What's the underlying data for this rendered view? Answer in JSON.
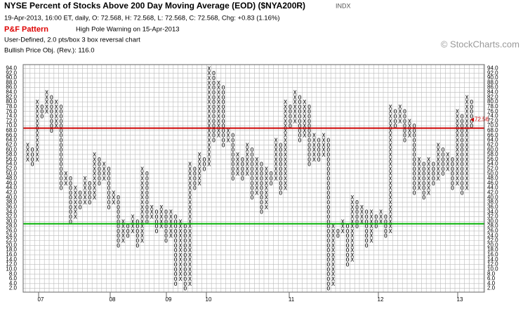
{
  "chart_data": {
    "type": "point-and-figure",
    "title": "NYSE Percent of Stocks Above 200 Day Moving Average (EOD) ($NYA200R)",
    "exchange": "INDX",
    "quote_line": "19-Apr-2013, 16:00 ET, daily, O: 72.568, H: 72.568, L: 72.568, C: 72.568, Chg: +0.83 (1.16%)",
    "pattern_label": "P&F Pattern",
    "pattern_text": "High Pole Warning on 15-Apr-2013",
    "settings_text": "User-Defined, 2.0 pts/box 3 box reversal chart",
    "objective_text": "Bullish Price Obj. (Rev.): 116.0",
    "watermark": "© StockCharts.com",
    "box_size": 2,
    "ylim": [
      1,
      95
    ],
    "yticks": [
      {
        "value": 2,
        "label": "2.0"
      },
      {
        "value": 4,
        "label": "4.0"
      },
      {
        "value": 6,
        "label": "6.0"
      },
      {
        "value": 8,
        "label": "8.0"
      },
      {
        "value": 10,
        "label": "10.0"
      },
      {
        "value": 12,
        "label": "12.0"
      },
      {
        "value": 14,
        "label": "14.0"
      },
      {
        "value": 16,
        "label": "16.0"
      },
      {
        "value": 18,
        "label": "18.0"
      },
      {
        "value": 20,
        "label": "20.0"
      },
      {
        "value": 22,
        "label": "22.0"
      },
      {
        "value": 24,
        "label": "24.0"
      },
      {
        "value": 26,
        "label": "26.0"
      },
      {
        "value": 28,
        "label": "28.0"
      },
      {
        "value": 30,
        "label": "30.0"
      },
      {
        "value": 32,
        "label": "32.0"
      },
      {
        "value": 34,
        "label": "34.0"
      },
      {
        "value": 36,
        "label": "36.0"
      },
      {
        "value": 38,
        "label": "38.0"
      },
      {
        "value": 40,
        "label": "40.0"
      },
      {
        "value": 42,
        "label": "42.0"
      },
      {
        "value": 44,
        "label": "44.0"
      },
      {
        "value": 46,
        "label": "46.0"
      },
      {
        "value": 48,
        "label": "48.0"
      },
      {
        "value": 50,
        "label": "50.0"
      },
      {
        "value": 52,
        "label": "52.0"
      },
      {
        "value": 54,
        "label": "54.0"
      },
      {
        "value": 56,
        "label": "56.0"
      },
      {
        "value": 58,
        "label": "58.0"
      },
      {
        "value": 60,
        "label": "60.0"
      },
      {
        "value": 62,
        "label": "62.0"
      },
      {
        "value": 64,
        "label": "64.0"
      },
      {
        "value": 66,
        "label": "66.0"
      },
      {
        "value": 68,
        "label": "68.0"
      },
      {
        "value": 70,
        "label": "70.0"
      },
      {
        "value": 72,
        "label": "72.0"
      },
      {
        "value": 74,
        "label": "74.0"
      },
      {
        "value": 76,
        "label": "76.0"
      },
      {
        "value": 78,
        "label": "78.0"
      },
      {
        "value": 80,
        "label": "80.0"
      },
      {
        "value": 82,
        "label": "82.0"
      },
      {
        "value": 84,
        "label": "84.0"
      },
      {
        "value": 86,
        "label": "86.0"
      },
      {
        "value": 88,
        "label": "88.0"
      },
      {
        "value": 90,
        "label": "90.0"
      },
      {
        "value": 92,
        "label": "92.0"
      },
      {
        "value": 94,
        "label": "94.0"
      }
    ],
    "reference_lines": [
      {
        "value": 69,
        "color": "#cc0000"
      },
      {
        "value": 29,
        "color": "#00b000"
      }
    ],
    "last_value": 72.56,
    "last_label": "72.56",
    "last_color": "#cc0000",
    "year_labels": [
      "07",
      "08",
      "09",
      "10",
      "11",
      "12",
      "13"
    ],
    "columns": [
      {
        "type": "X",
        "low": 56,
        "high": 62
      },
      {
        "type": "O",
        "low": 54,
        "high": 60
      },
      {
        "type": "X",
        "low": 56,
        "high": 80
      },
      {
        "type": "O",
        "low": 74,
        "high": 78
      },
      {
        "type": "X",
        "low": 76,
        "high": 84
      },
      {
        "type": "O",
        "low": 68,
        "high": 82
      },
      {
        "type": "X",
        "low": 70,
        "high": 80
      },
      {
        "type": "O",
        "low": 44,
        "high": 78
      },
      {
        "type": "X",
        "low": 46,
        "high": 50
      },
      {
        "type": "O",
        "low": 30,
        "high": 48
      },
      {
        "type": "X",
        "low": 32,
        "high": 44
      },
      {
        "type": "O",
        "low": 36,
        "high": 42
      },
      {
        "type": "X",
        "low": 38,
        "high": 48
      },
      {
        "type": "O",
        "low": 38,
        "high": 46
      },
      {
        "type": "X",
        "low": 40,
        "high": 58
      },
      {
        "type": "O",
        "low": 46,
        "high": 56
      },
      {
        "type": "X",
        "low": 48,
        "high": 54
      },
      {
        "type": "O",
        "low": 36,
        "high": 52
      },
      {
        "type": "X",
        "low": 38,
        "high": 42
      },
      {
        "type": "O",
        "low": 20,
        "high": 40
      },
      {
        "type": "X",
        "low": 22,
        "high": 30
      },
      {
        "type": "O",
        "low": 24,
        "high": 28
      },
      {
        "type": "X",
        "low": 26,
        "high": 32
      },
      {
        "type": "O",
        "low": 20,
        "high": 30
      },
      {
        "type": "X",
        "low": 22,
        "high": 52
      },
      {
        "type": "O",
        "low": 30,
        "high": 50
      },
      {
        "type": "X",
        "low": 32,
        "high": 36
      },
      {
        "type": "O",
        "low": 26,
        "high": 34
      },
      {
        "type": "X",
        "low": 28,
        "high": 36
      },
      {
        "type": "O",
        "low": 22,
        "high": 34
      },
      {
        "type": "X",
        "low": 24,
        "high": 34
      },
      {
        "type": "O",
        "low": 4,
        "high": 32
      },
      {
        "type": "X",
        "low": 6,
        "high": 30
      },
      {
        "type": "O",
        "low": 2,
        "high": 28
      },
      {
        "type": "X",
        "low": 4,
        "high": 54
      },
      {
        "type": "O",
        "low": 44,
        "high": 52
      },
      {
        "type": "X",
        "low": 46,
        "high": 58
      },
      {
        "type": "O",
        "low": 52,
        "high": 56
      },
      {
        "type": "X",
        "low": 54,
        "high": 94
      },
      {
        "type": "O",
        "low": 64,
        "high": 92
      },
      {
        "type": "X",
        "low": 66,
        "high": 88
      },
      {
        "type": "O",
        "low": 62,
        "high": 86
      },
      {
        "type": "X",
        "low": 64,
        "high": 68
      },
      {
        "type": "O",
        "low": 48,
        "high": 66
      },
      {
        "type": "X",
        "low": 50,
        "high": 58
      },
      {
        "type": "O",
        "low": 48,
        "high": 56
      },
      {
        "type": "X",
        "low": 50,
        "high": 62
      },
      {
        "type": "O",
        "low": 40,
        "high": 60
      },
      {
        "type": "X",
        "low": 42,
        "high": 56
      },
      {
        "type": "O",
        "low": 34,
        "high": 54
      },
      {
        "type": "X",
        "low": 36,
        "high": 52
      },
      {
        "type": "O",
        "low": 46,
        "high": 50
      },
      {
        "type": "X",
        "low": 48,
        "high": 64
      },
      {
        "type": "O",
        "low": 42,
        "high": 62
      },
      {
        "type": "X",
        "low": 44,
        "high": 80
      },
      {
        "type": "O",
        "low": 70,
        "high": 78
      },
      {
        "type": "X",
        "low": 72,
        "high": 84
      },
      {
        "type": "O",
        "low": 64,
        "high": 82
      },
      {
        "type": "X",
        "low": 66,
        "high": 80
      },
      {
        "type": "O",
        "low": 54,
        "high": 78
      },
      {
        "type": "X",
        "low": 56,
        "high": 66
      },
      {
        "type": "O",
        "low": 56,
        "high": 64
      },
      {
        "type": "X",
        "low": 58,
        "high": 66
      },
      {
        "type": "O",
        "low": 2,
        "high": 64
      },
      {
        "type": "X",
        "low": 4,
        "high": 28
      },
      {
        "type": "O",
        "low": 24,
        "high": 26
      },
      {
        "type": "X",
        "low": 26,
        "high": 30
      },
      {
        "type": "O",
        "low": 12,
        "high": 28
      },
      {
        "type": "X",
        "low": 14,
        "high": 40
      },
      {
        "type": "O",
        "low": 28,
        "high": 38
      },
      {
        "type": "X",
        "low": 30,
        "high": 36
      },
      {
        "type": "O",
        "low": 20,
        "high": 34
      },
      {
        "type": "X",
        "low": 22,
        "high": 34
      },
      {
        "type": "O",
        "low": 28,
        "high": 32
      },
      {
        "type": "X",
        "low": 30,
        "high": 34
      },
      {
        "type": "O",
        "low": 24,
        "high": 32
      },
      {
        "type": "X",
        "low": 26,
        "high": 78
      },
      {
        "type": "O",
        "low": 70,
        "high": 76
      },
      {
        "type": "X",
        "low": 72,
        "high": 78
      },
      {
        "type": "O",
        "low": 64,
        "high": 76
      },
      {
        "type": "X",
        "low": 66,
        "high": 72
      },
      {
        "type": "O",
        "low": 42,
        "high": 70
      },
      {
        "type": "X",
        "low": 44,
        "high": 56
      },
      {
        "type": "O",
        "low": 40,
        "high": 54
      },
      {
        "type": "X",
        "low": 42,
        "high": 56
      },
      {
        "type": "O",
        "low": 46,
        "high": 54
      },
      {
        "type": "X",
        "low": 48,
        "high": 62
      },
      {
        "type": "O",
        "low": 50,
        "high": 60
      },
      {
        "type": "X",
        "low": 52,
        "high": 58
      },
      {
        "type": "O",
        "low": 44,
        "high": 56
      },
      {
        "type": "X",
        "low": 46,
        "high": 76
      },
      {
        "type": "O",
        "low": 42,
        "high": 74
      },
      {
        "type": "X",
        "low": 44,
        "high": 82
      },
      {
        "type": "O",
        "low": 70,
        "high": 80
      }
    ]
  }
}
